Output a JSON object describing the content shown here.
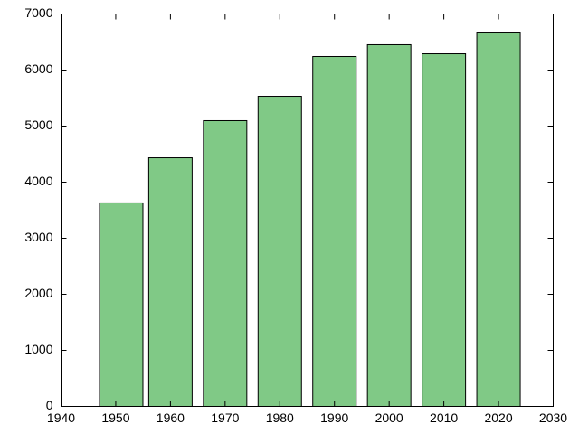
{
  "chart_data": {
    "type": "bar",
    "x": [
      1951,
      1960,
      1970,
      1980,
      1990,
      2000,
      2010,
      2020
    ],
    "values": [
      3630,
      4435,
      5097,
      5532,
      6242,
      6452,
      6290,
      6677
    ],
    "color": "#80c986",
    "xlim": [
      1940,
      2030
    ],
    "xticks": [
      1940,
      1950,
      1960,
      1970,
      1980,
      1990,
      2000,
      2010,
      2020,
      2030
    ],
    "ylim": [
      0,
      7000
    ],
    "yticks": [
      0,
      1000,
      2000,
      3000,
      4000,
      5000,
      6000,
      7000
    ],
    "grid": false
  }
}
